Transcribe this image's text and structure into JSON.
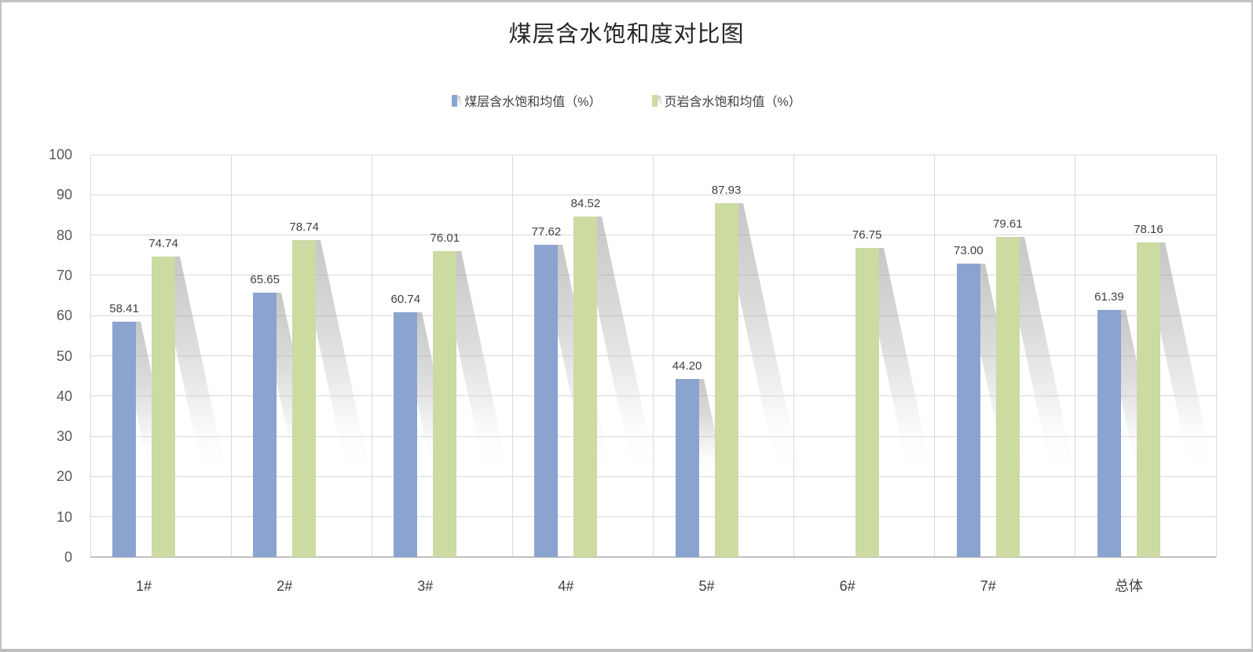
{
  "chart_data": {
    "type": "bar",
    "title": "煤层含水饱和度对比图",
    "categories": [
      "1#",
      "2#",
      "3#",
      "4#",
      "5#",
      "6#",
      "7#",
      "总体"
    ],
    "series": [
      {
        "name": "煤层含水饱和均值（%）",
        "color": "#8ba3cf",
        "values": [
          58.41,
          65.65,
          60.74,
          77.62,
          44.2,
          null,
          73.0,
          61.39
        ],
        "labels": [
          "58.41",
          "65.65",
          "60.74",
          "77.62",
          "44.20",
          "",
          "73.00",
          "61.39"
        ]
      },
      {
        "name": "页岩含水饱和均值（%）",
        "color": "#cbdba2",
        "values": [
          74.74,
          78.74,
          76.01,
          84.52,
          87.93,
          76.75,
          79.61,
          78.16
        ],
        "labels": [
          "74.74",
          "78.74",
          "76.01",
          "84.52",
          "87.93",
          "76.75",
          "79.61",
          "78.16"
        ]
      }
    ],
    "ylim": [
      0,
      100
    ],
    "y_ticks": [
      0,
      10,
      20,
      30,
      40,
      50,
      60,
      70,
      80,
      90,
      100
    ],
    "grid": true,
    "legend_position": "top",
    "colors": {
      "gridline": "#d9d9d9",
      "axis_line": "#bfbfbf",
      "tick_label": "#595959",
      "data_label": "#404040",
      "title": "#262626"
    }
  }
}
